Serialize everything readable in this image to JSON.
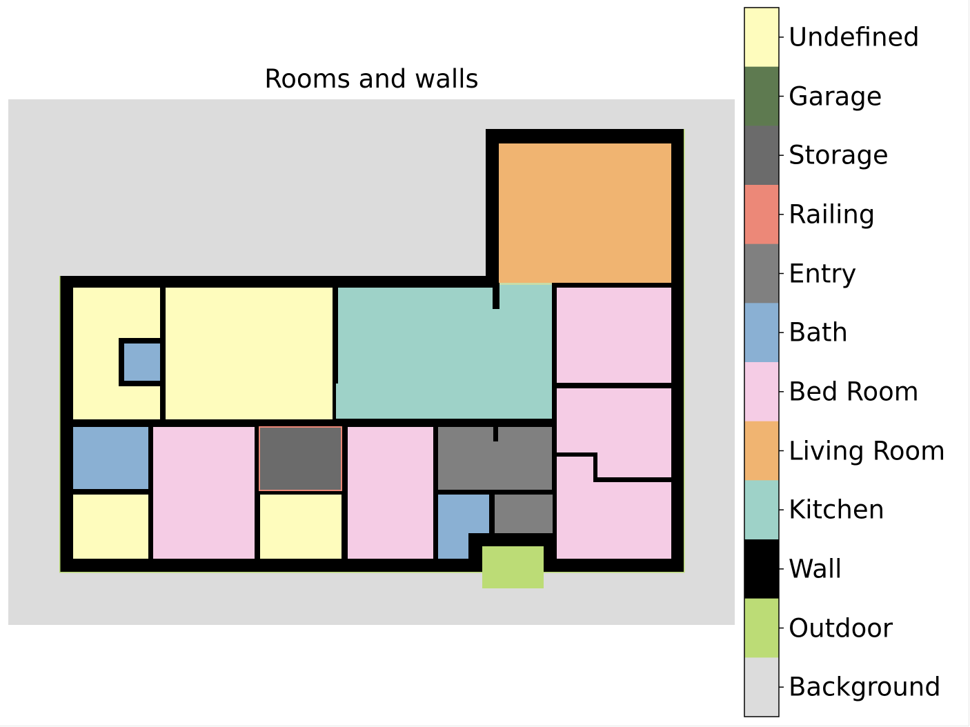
{
  "title": "Rooms and walls",
  "colors": {
    "Undefined": "#fefcbd",
    "Garage": "#5e7a50",
    "Storage": "#6b6b6b",
    "Railing": "#ec8878",
    "Entry": "#808080",
    "Bath": "#8ab0d3",
    "Bed Room": "#f5cce5",
    "Living Room": "#f0b471",
    "Kitchen": "#9ed2c8",
    "Wall": "#000000",
    "Outdoor": "#bcdc76",
    "Background": "#dcdcdc"
  },
  "colorbar": {
    "labels": [
      "Undefined",
      "Garage",
      "Storage",
      "Railing",
      "Entry",
      "Bath",
      "Bed Room",
      "Living Room",
      "Kitchen",
      "Wall",
      "Outdoor",
      "Background"
    ]
  }
}
